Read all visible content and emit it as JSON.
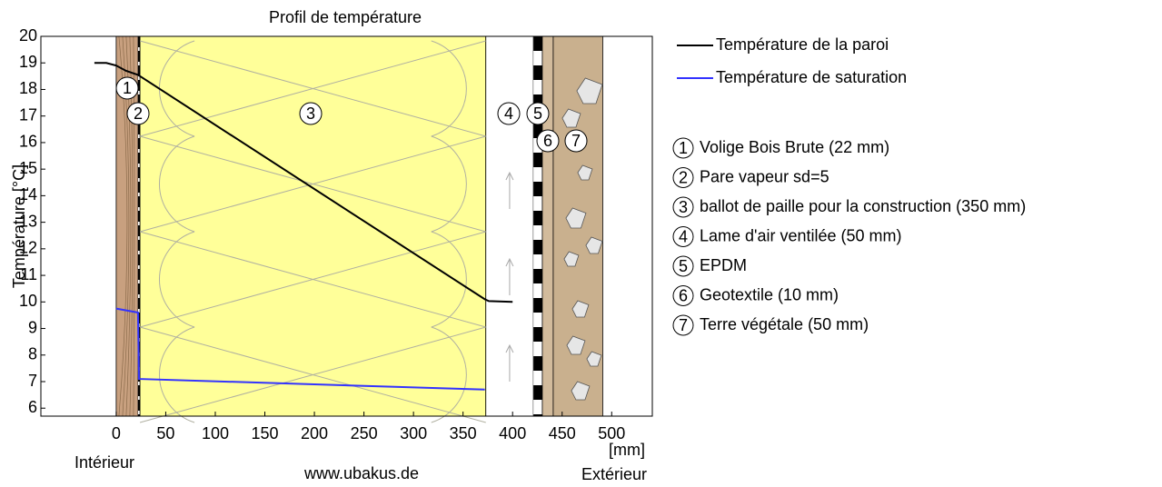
{
  "chart_data": {
    "type": "line",
    "title": "Profil de température",
    "ylabel": "Température [°C]",
    "xlabel": "[mm]",
    "inside_label": "Intérieur",
    "outside_label": "Extérieur",
    "source": "www.ubakus.de",
    "xlim": [
      -76,
      541
    ],
    "xticks": [
      0,
      50,
      100,
      150,
      200,
      250,
      300,
      350,
      400,
      450,
      500
    ],
    "ylim": [
      5.7,
      20
    ],
    "yticks": [
      6,
      7,
      8,
      9,
      10,
      11,
      12,
      13,
      14,
      15,
      16,
      17,
      18,
      19,
      20
    ],
    "series": [
      {
        "name": "Température de la paroi",
        "color": "#000000",
        "x": [
          -22,
          -10,
          0,
          10,
          22,
          24,
          372,
          376,
          400
        ],
        "values": [
          19.0,
          19.0,
          18.9,
          18.7,
          18.55,
          18.5,
          10.1,
          10.03,
          10.0
        ]
      },
      {
        "name": "Température de saturation",
        "color": "#3333ff",
        "x": [
          0,
          22,
          23,
          372
        ],
        "values": [
          9.75,
          9.6,
          7.1,
          6.7
        ]
      }
    ],
    "layers": [
      {
        "number": "1",
        "name": "Volige Bois Brute (22 mm)",
        "x0": 0,
        "x1": 22,
        "color": "#c8a07f",
        "style": "solid"
      },
      {
        "number": "2",
        "name": "Pare vapeur sd=5",
        "x0": 22,
        "x1": 24,
        "color": "#000000",
        "style": "dashed"
      },
      {
        "number": "3",
        "name": "ballot de paille pour la construction (350 mm)",
        "x0": 24,
        "x1": 373,
        "color": "#ffff99",
        "style": "solid"
      },
      {
        "number": "4",
        "name": "Lame d'air ventilée (50 mm)",
        "x0": 373,
        "x1": 421,
        "color": "#ffffff",
        "style": "solid"
      },
      {
        "number": "5",
        "name": "EPDM",
        "x0": 421,
        "x1": 430,
        "color": "#000000",
        "style": "dashed"
      },
      {
        "number": "6",
        "name": "Geotextile (10 mm)",
        "x0": 430,
        "x1": 441,
        "color": "#d2bb9c",
        "style": "solid"
      },
      {
        "number": "7",
        "name": "Terre végétale (50 mm)",
        "x0": 441,
        "x1": 491,
        "color": "#c9b08e",
        "style": "solid"
      }
    ]
  }
}
